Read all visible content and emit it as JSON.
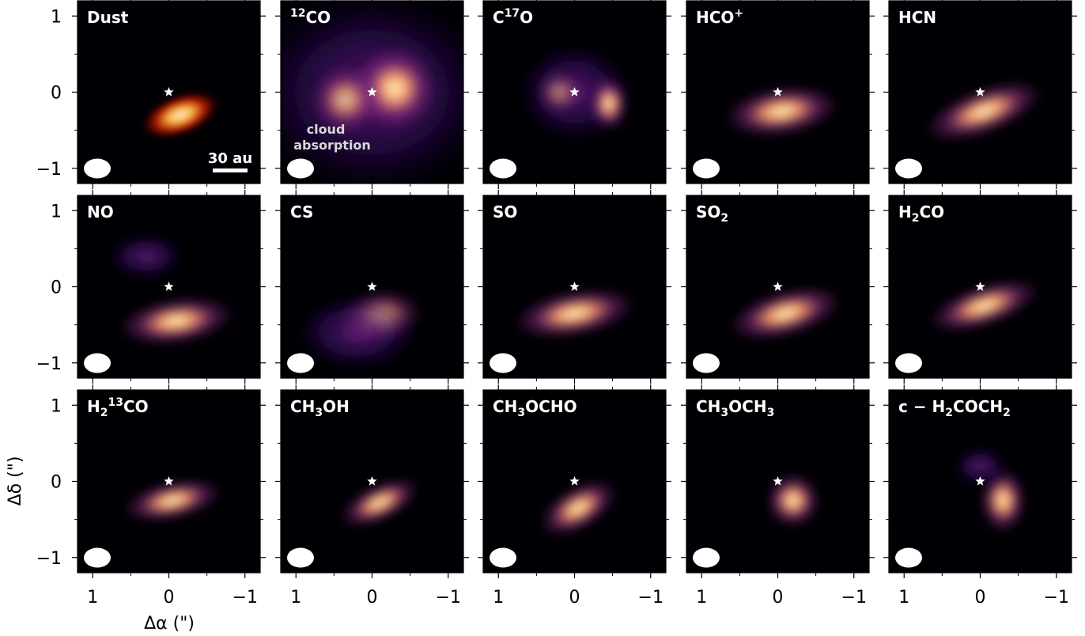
{
  "figure": {
    "xlabel": "Δα (\")",
    "ylabel": "Δδ (\")",
    "x_ticks": [
      "1",
      "0",
      "−1"
    ],
    "y_ticks": [
      "1",
      "0",
      "−1"
    ],
    "scale_bar_label": "30 au",
    "cloud_absorption_line1": "cloud",
    "cloud_absorption_line2": "absorption",
    "colormap": "magma",
    "colors": {
      "background": "#000004",
      "mid": "#8c2981",
      "high": "#fe9f6d",
      "peak": "#fcfdbf",
      "dust_core": "#ffe8c0"
    }
  },
  "panels": [
    {
      "id": "dust",
      "label": [
        {
          "t": "Dust"
        }
      ]
    },
    {
      "id": "12co",
      "label": [
        {
          "t": "12",
          "s": "sup"
        },
        {
          "t": "CO"
        }
      ]
    },
    {
      "id": "c17o",
      "label": [
        {
          "t": "C"
        },
        {
          "t": "17",
          "s": "sup"
        },
        {
          "t": "O"
        }
      ]
    },
    {
      "id": "hcop",
      "label": [
        {
          "t": "HCO"
        },
        {
          "t": "+",
          "s": "sup"
        }
      ]
    },
    {
      "id": "hcn",
      "label": [
        {
          "t": "HCN"
        }
      ]
    },
    {
      "id": "no",
      "label": [
        {
          "t": "NO"
        }
      ]
    },
    {
      "id": "cs",
      "label": [
        {
          "t": "CS"
        }
      ]
    },
    {
      "id": "so",
      "label": [
        {
          "t": "SO"
        }
      ]
    },
    {
      "id": "so2",
      "label": [
        {
          "t": "SO"
        },
        {
          "t": "2",
          "s": "sub"
        }
      ]
    },
    {
      "id": "h2co",
      "label": [
        {
          "t": "H"
        },
        {
          "t": "2",
          "s": "sub"
        },
        {
          "t": "CO"
        }
      ]
    },
    {
      "id": "h213co",
      "label": [
        {
          "t": "H"
        },
        {
          "t": "2",
          "s": "sub"
        },
        {
          "t": "13",
          "s": "sup"
        },
        {
          "t": "CO"
        }
      ]
    },
    {
      "id": "ch3oh",
      "label": [
        {
          "t": "CH"
        },
        {
          "t": "3",
          "s": "sub"
        },
        {
          "t": "OH"
        }
      ]
    },
    {
      "id": "ch3ocho",
      "label": [
        {
          "t": "CH"
        },
        {
          "t": "3",
          "s": "sub"
        },
        {
          "t": "OCHO"
        }
      ]
    },
    {
      "id": "ch3och3",
      "label": [
        {
          "t": "CH"
        },
        {
          "t": "3",
          "s": "sub"
        },
        {
          "t": "OCH"
        },
        {
          "t": "3",
          "s": "sub"
        }
      ]
    },
    {
      "id": "c-h2coch2",
      "label": [
        {
          "t": "c − H"
        },
        {
          "t": "2",
          "s": "sub"
        },
        {
          "t": "COCH"
        },
        {
          "t": "2",
          "s": "sub"
        }
      ]
    }
  ]
}
